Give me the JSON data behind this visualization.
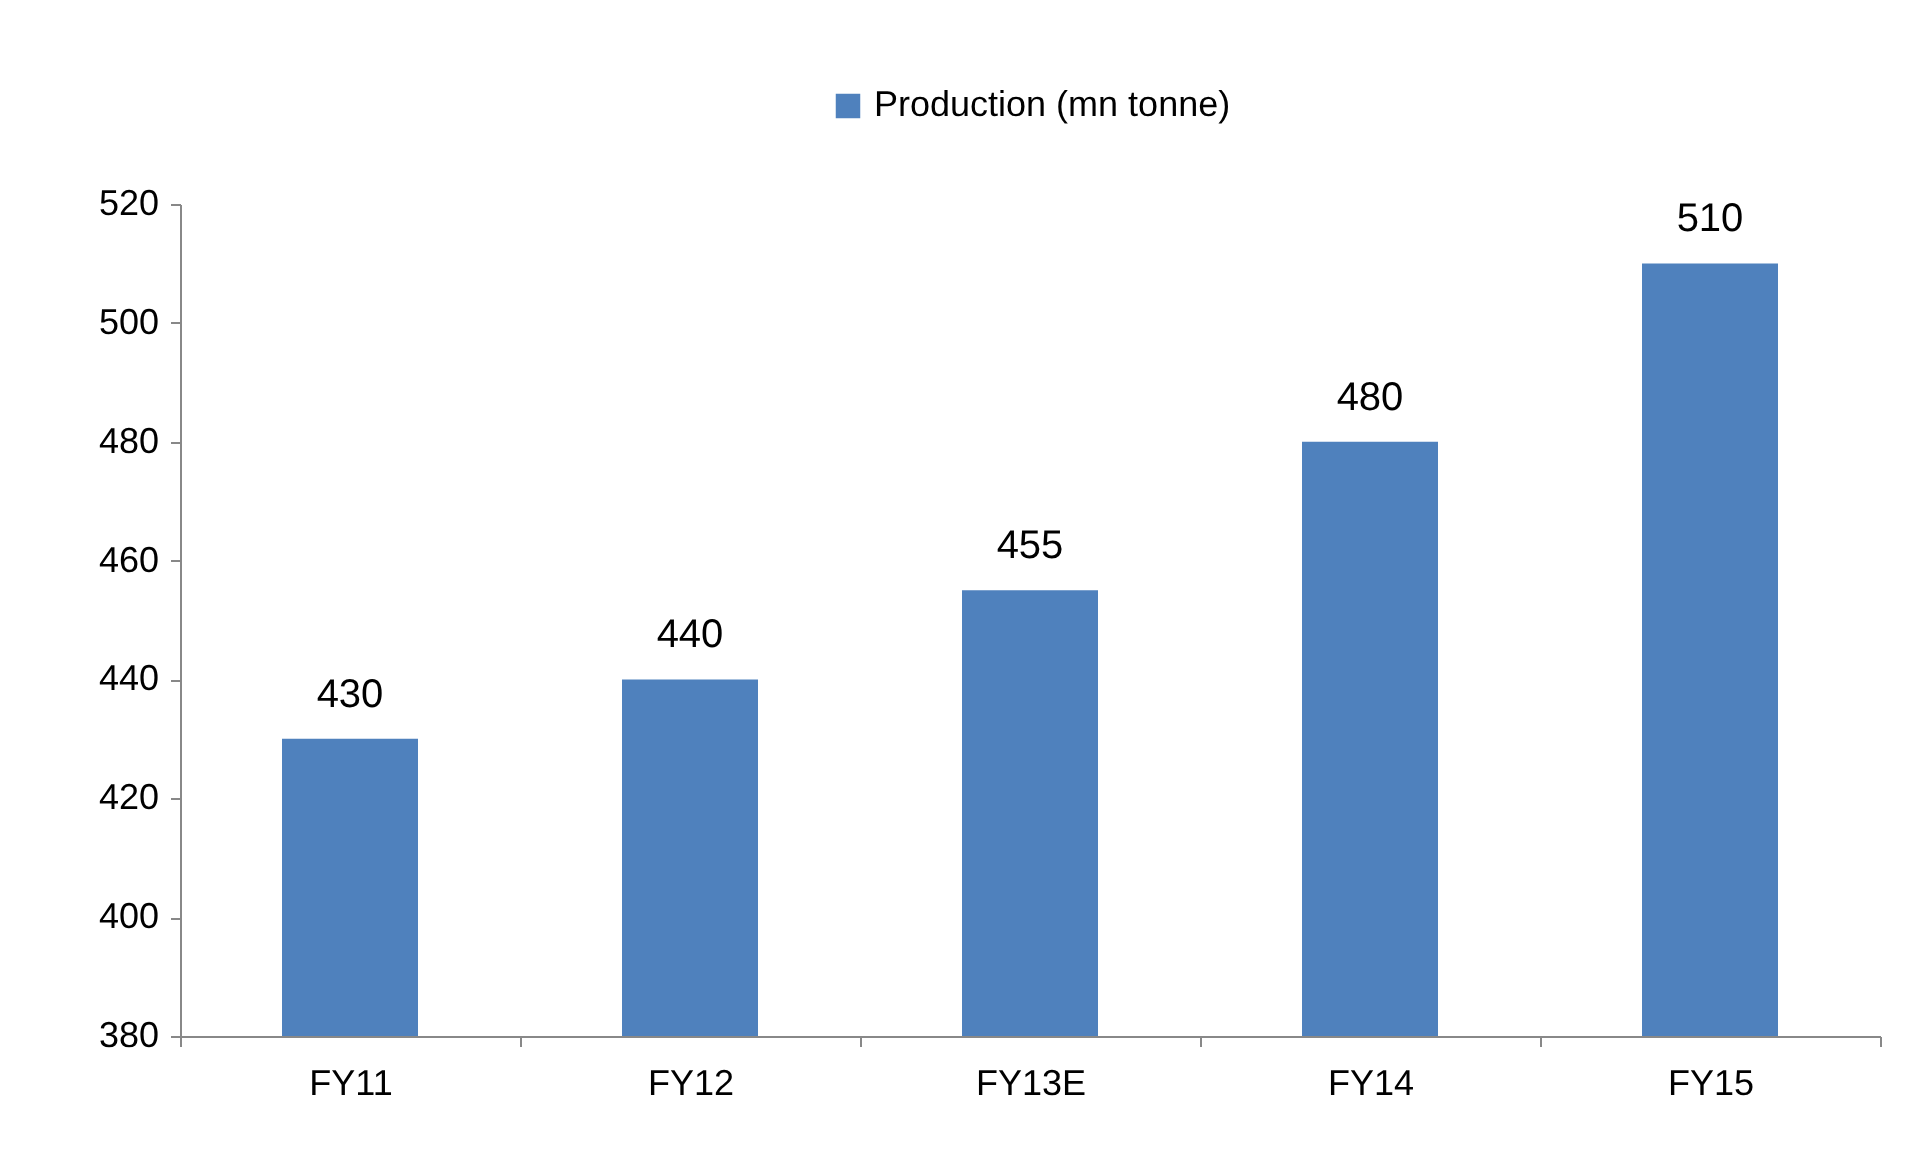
{
  "chart_data": {
    "type": "bar",
    "categories": [
      "FY11",
      "FY12",
      "FY13E",
      "FY14",
      "FY15"
    ],
    "series": [
      {
        "name": "Production (mn tonne)",
        "color": "#4f81bd",
        "values": [
          430,
          440,
          455,
          480,
          510
        ]
      }
    ],
    "ylim": [
      380,
      520
    ],
    "yticks": [
      380,
      400,
      420,
      440,
      460,
      480,
      500,
      520
    ],
    "grid": false,
    "legend": "top",
    "data_labels": true
  }
}
